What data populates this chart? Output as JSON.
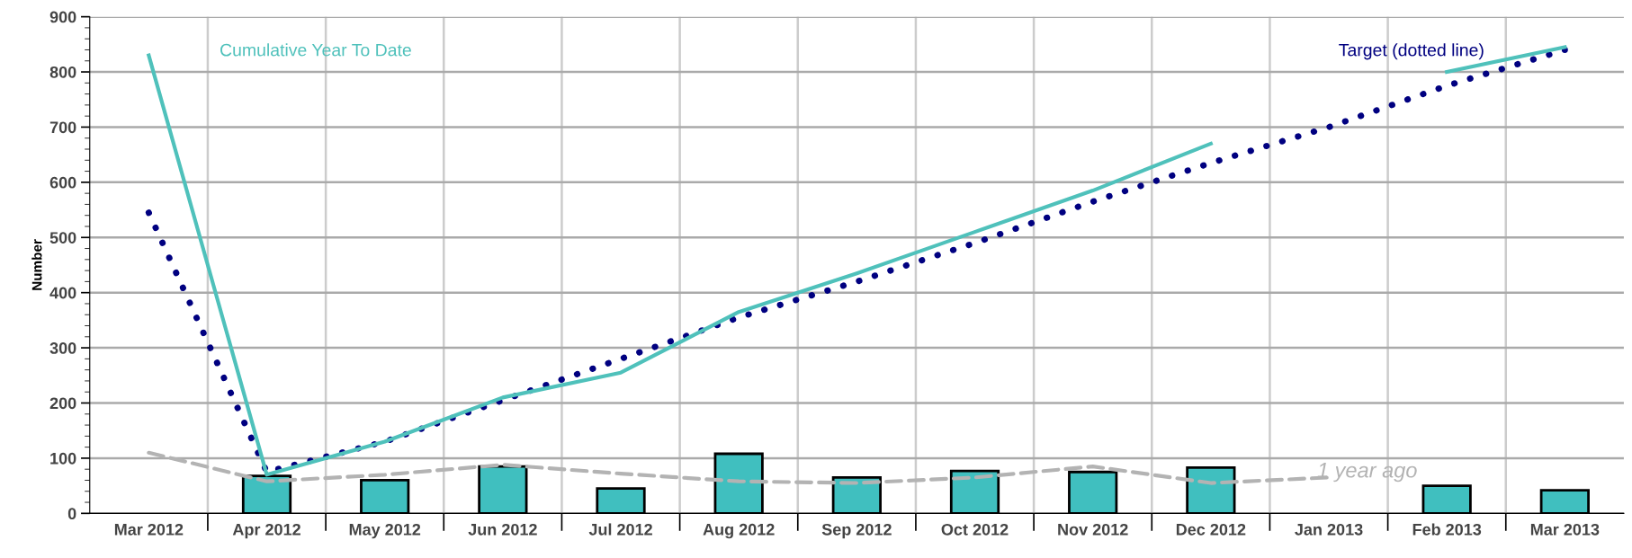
{
  "chart_data": {
    "type": "bar",
    "ylabel": "Number",
    "categories": [
      "Mar 2012",
      "Apr 2012",
      "May 2012",
      "Jun 2012",
      "Jul 2012",
      "Aug 2012",
      "Sep 2012",
      "Oct 2012",
      "Nov 2012",
      "Dec 2012",
      "Jan 2013",
      "Feb 2013",
      "Mar 2013"
    ],
    "series": [
      {
        "color": "#40bfbf",
        "values": [
          null,
          68,
          60,
          85,
          45,
          108,
          65,
          77,
          75,
          83,
          null,
          50,
          42
        ]
      },
      {
        "type": "line",
        "name": "1 year ago",
        "color": "#b3b3b3",
        "line_style": "dashed",
        "values": [
          110,
          58,
          70,
          88,
          72,
          58,
          55,
          65,
          85,
          55,
          65,
          null,
          null
        ]
      },
      {
        "type": "line",
        "name": "Target (dotted line)",
        "color": "#000080",
        "line_style": "dotted",
        "values": [
          545,
          75,
          130,
          205,
          280,
          355,
          420,
          490,
          565,
          635,
          700,
          775,
          840
        ]
      },
      {
        "type": "line",
        "name": "Cumulative Year To Date",
        "color": "#4fc1bb",
        "line_style": "solid",
        "values": [
          830,
          70,
          130,
          210,
          255,
          365,
          435,
          510,
          585,
          670,
          null,
          800,
          845
        ]
      }
    ],
    "ylim": [
      0,
      900
    ],
    "yticks": [
      0,
      100,
      200,
      300,
      400,
      500,
      600,
      700,
      800,
      900
    ],
    "grid": true,
    "legend": false
  }
}
